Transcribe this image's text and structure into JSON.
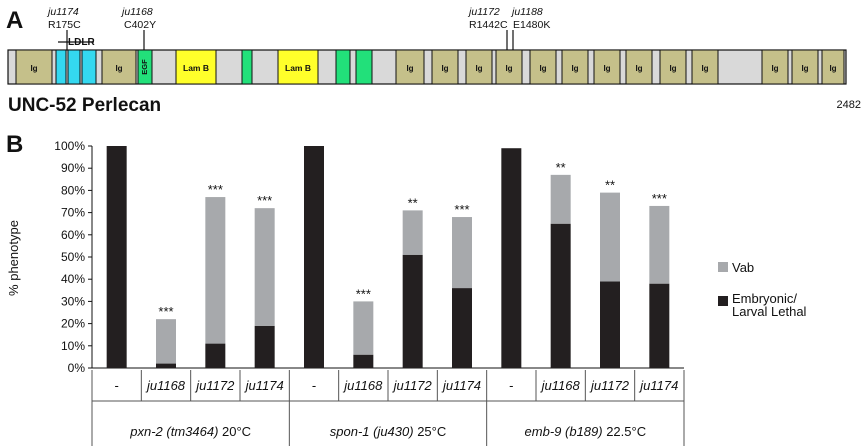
{
  "panel_a": {
    "label": "A",
    "protein_name": "UNC-52 Perlecan",
    "length_label": "2482",
    "domain_labels": {
      "ig": "Ig",
      "ldlr": "LDLR",
      "egf": "EGF",
      "lamb": "Lam B"
    },
    "mutations": [
      {
        "allele": "ju1174",
        "change": "R175C"
      },
      {
        "allele": "ju1168",
        "change": "C402Y"
      },
      {
        "allele": "ju1172",
        "change": "R1442C"
      },
      {
        "allele": "ju1188",
        "change": "E1480K"
      }
    ],
    "colors": {
      "ig": "#c5c08a",
      "ldlr": "#34d8f0",
      "egf": "#22e07a",
      "lamb": "#ffff2a",
      "linker": "#d9d9d9"
    }
  },
  "panel_b": {
    "label": "B"
  },
  "chart_data": {
    "type": "bar",
    "stacked": true,
    "ylabel": "% phenotype",
    "ylim": [
      0,
      100
    ],
    "yticks": [
      "0%",
      "10%",
      "20%",
      "30%",
      "40%",
      "50%",
      "60%",
      "70%",
      "80%",
      "90%",
      "100%"
    ],
    "grid": false,
    "legend_position": "right",
    "categories": [
      "-",
      "ju1168",
      "ju1172",
      "ju1174",
      "-",
      "ju1168",
      "ju1172",
      "ju1174",
      "-",
      "ju1168",
      "ju1172",
      "ju1174"
    ],
    "groups": [
      {
        "name": "pxn-2 (tm3464)",
        "temp": "20°C"
      },
      {
        "name": "spon-1 (ju430)",
        "temp": "25°C"
      },
      {
        "name": "emb-9 (b189)",
        "temp": "22.5°C"
      }
    ],
    "series": [
      {
        "name": "Embryonic/ Larval Lethal",
        "color": "#231f20",
        "values": [
          100,
          2,
          11,
          19,
          100,
          6,
          51,
          36,
          99,
          65,
          39,
          38
        ]
      },
      {
        "name": "Vab",
        "color": "#a7a9ac",
        "values": [
          0,
          20,
          66,
          53,
          0,
          24,
          20,
          32,
          0,
          22,
          40,
          35
        ]
      }
    ],
    "annotations": [
      "",
      "***",
      "***",
      "***",
      "",
      "***",
      "**",
      "***",
      "",
      "**",
      "**",
      "***"
    ]
  }
}
